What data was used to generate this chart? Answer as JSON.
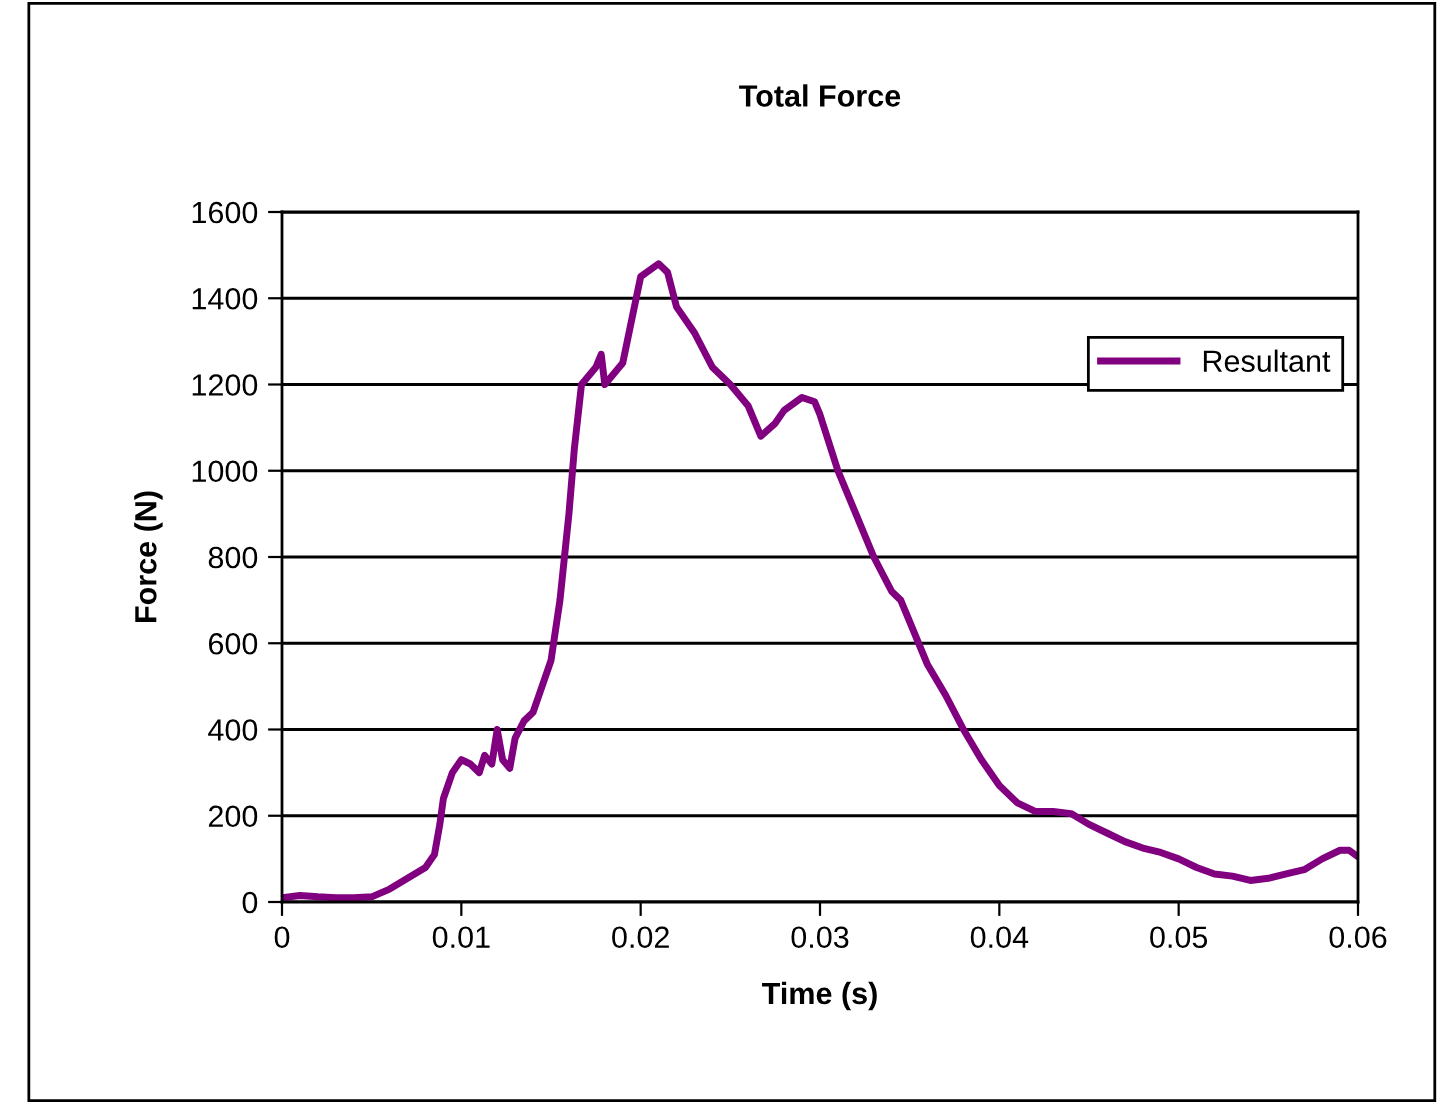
{
  "chart_data": {
    "type": "line",
    "title": "Total Force",
    "xlabel": "Time (s)",
    "ylabel": "Force (N)",
    "xlim": [
      0,
      0.06
    ],
    "xticks": [
      0,
      0.01,
      0.02,
      0.03,
      0.04,
      0.05,
      0.06
    ],
    "ylim": [
      0,
      1600
    ],
    "yticks": [
      0,
      200,
      400,
      600,
      800,
      1000,
      1200,
      1400,
      1600
    ],
    "grid": "y",
    "legend": "right",
    "marker": "none",
    "line_style": "solid",
    "series": [
      {
        "name": "Resultant",
        "color": "#800080",
        "x": [
          0,
          0.001,
          0.002,
          0.003,
          0.004,
          0.005,
          0.006,
          0.007,
          0.008,
          0.0085,
          0.0088,
          0.009,
          0.0095,
          0.01,
          0.0105,
          0.011,
          0.0113,
          0.0117,
          0.012,
          0.0123,
          0.0127,
          0.013,
          0.0135,
          0.014,
          0.0145,
          0.015,
          0.0155,
          0.016,
          0.0163,
          0.0167,
          0.0175,
          0.0178,
          0.018,
          0.019,
          0.0195,
          0.02,
          0.021,
          0.0215,
          0.022,
          0.023,
          0.024,
          0.025,
          0.026,
          0.0267,
          0.0275,
          0.028,
          0.029,
          0.0297,
          0.03,
          0.031,
          0.032,
          0.033,
          0.034,
          0.0345,
          0.035,
          0.036,
          0.037,
          0.038,
          0.039,
          0.04,
          0.041,
          0.042,
          0.043,
          0.044,
          0.045,
          0.046,
          0.047,
          0.048,
          0.049,
          0.05,
          0.051,
          0.052,
          0.053,
          0.054,
          0.055,
          0.056,
          0.057,
          0.058,
          0.059,
          0.0595,
          0.06
        ],
        "values": [
          10,
          15,
          12,
          10,
          10,
          12,
          30,
          55,
          80,
          110,
          180,
          240,
          300,
          330,
          320,
          300,
          340,
          320,
          400,
          330,
          310,
          380,
          420,
          440,
          500,
          560,
          700,
          900,
          1050,
          1200,
          1240,
          1270,
          1200,
          1250,
          1350,
          1450,
          1480,
          1460,
          1380,
          1320,
          1240,
          1200,
          1150,
          1080,
          1110,
          1140,
          1170,
          1160,
          1130,
          1000,
          900,
          800,
          720,
          700,
          650,
          550,
          480,
          400,
          330,
          270,
          230,
          210,
          210,
          205,
          180,
          160,
          140,
          125,
          115,
          100,
          80,
          65,
          60,
          50,
          55,
          65,
          75,
          100,
          120,
          120,
          105
        ]
      }
    ]
  }
}
